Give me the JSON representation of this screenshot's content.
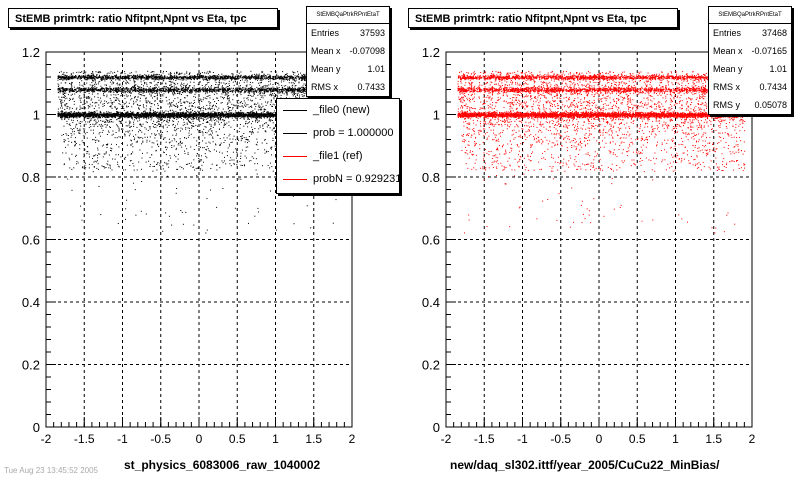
{
  "colors": {
    "black": "#000000",
    "red": "#ff0000",
    "grid": "#000000"
  },
  "footer": "Tue Aug 23 13:45:52 2005",
  "panels": [
    {
      "title": "StEMB primtrk: ratio Nfitpnt,Npnt vs Eta, tpc",
      "xlabel": "st_physics_6083006_raw_1040002",
      "marker_color": "#000000",
      "stats": {
        "name": "StEMBQaPtrkRPntEtaT",
        "rows": [
          {
            "label": "Entries",
            "value": "37593"
          },
          {
            "label": "Mean x",
            "value": "-0.07098"
          },
          {
            "label": "Mean y",
            "value": "1.01"
          },
          {
            "label": "RMS x",
            "value": "0.7433"
          }
        ]
      },
      "legend": [
        {
          "label": "_file0 (new)",
          "color": "#000000"
        },
        {
          "label": "prob = 1.000000",
          "color": "#000000"
        },
        {
          "label": "_file1 (ref)",
          "color": "#ff0000"
        },
        {
          "label": "probN = 0.929231",
          "color": "#ff0000"
        }
      ]
    },
    {
      "title": "StEMB primtrk: ratio Nfitpnt,Npnt vs Eta, tpc",
      "xlabel": "new/daq_sl302.ittf/year_2005/CuCu22_MinBias/",
      "marker_color": "#ff0000",
      "stats": {
        "name": "StEMBQaPtrkRPntEtaT",
        "rows": [
          {
            "label": "Entries",
            "value": "37468"
          },
          {
            "label": "Mean x",
            "value": "-0.07165"
          },
          {
            "label": "Mean y",
            "value": "1.01"
          },
          {
            "label": "RMS x",
            "value": "0.7434"
          },
          {
            "label": "RMS y",
            "value": "0.05078"
          }
        ]
      }
    }
  ],
  "chart_data": [
    {
      "type": "scatter",
      "title": "StEMB primtrk: ratio Nfitpnt,Npnt vs Eta, tpc",
      "xlabel": "st_physics_6083006_raw_1040002",
      "ylabel": "",
      "xlim": [
        -2,
        2
      ],
      "ylim": [
        0,
        1.2
      ],
      "xticks": [
        "-2",
        "-1.5",
        "-1",
        "-0.5",
        "0",
        "0.5",
        "1",
        "1.5",
        "2"
      ],
      "yticks": [
        "0",
        "0.2",
        "0.4",
        "0.6",
        "0.8",
        "1",
        "1.2"
      ],
      "grid": true,
      "series": [
        {
          "name": "_file0 (new)",
          "color": "#000000",
          "bands": [
            {
              "y": 1.0,
              "xmin": -1.8,
              "xmax": 1.8,
              "density": "high"
            },
            {
              "y": 1.08,
              "xmin": -1.8,
              "xmax": 1.8,
              "density": "medium"
            },
            {
              "y": 1.12,
              "xmin": -1.8,
              "xmax": 1.8,
              "density": "medium"
            },
            {
              "y_range": [
                0.82,
                1.0
              ],
              "xmin": -1.8,
              "xmax": 1.9,
              "density": "low"
            }
          ]
        }
      ],
      "legend": [
        "_file0 (new)",
        "prob = 1.000000",
        "_file1 (ref)",
        "probN = 0.929231"
      ]
    },
    {
      "type": "scatter",
      "title": "StEMB primtrk: ratio Nfitpnt,Npnt vs Eta, tpc",
      "xlabel": "new/daq_sl302.ittf/year_2005/CuCu22_MinBias/",
      "ylabel": "",
      "xlim": [
        -2,
        2
      ],
      "ylim": [
        0,
        1.2
      ],
      "xticks": [
        "-2",
        "-1.5",
        "-1",
        "-0.5",
        "0",
        "0.5",
        "1",
        "1.5",
        "2"
      ],
      "yticks": [
        "0",
        "0.2",
        "0.4",
        "0.6",
        "0.8",
        "1",
        "1.2"
      ],
      "grid": true,
      "series": [
        {
          "name": "",
          "color": "#ff0000",
          "bands": [
            {
              "y": 1.0,
              "xmin": -1.8,
              "xmax": 1.8,
              "density": "high"
            },
            {
              "y": 1.08,
              "xmin": -1.8,
              "xmax": 1.8,
              "density": "medium"
            },
            {
              "y": 1.12,
              "xmin": -1.8,
              "xmax": 1.8,
              "density": "medium"
            },
            {
              "y_range": [
                0.82,
                1.0
              ],
              "xmin": -1.8,
              "xmax": 1.9,
              "density": "low"
            }
          ]
        }
      ]
    }
  ]
}
